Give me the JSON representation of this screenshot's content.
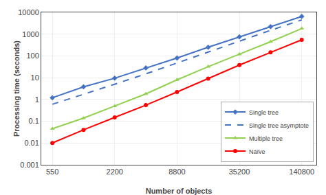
{
  "chart_data": {
    "type": "line",
    "xlabel": "Number of objects",
    "ylabel": "Processing time (seconds)",
    "x": [
      550,
      1100,
      2200,
      4400,
      8800,
      17600,
      35200,
      70400,
      140800
    ],
    "series": [
      {
        "name": "Single tree",
        "color": "#4472C4",
        "marker": "diamond",
        "line_style": "solid",
        "values": [
          1.2,
          3.8,
          9.5,
          28.0,
          80.0,
          250.0,
          750.0,
          2200.0,
          6500.0
        ]
      },
      {
        "name": "Single tree asymptote",
        "color": "#4472C4",
        "line_style": "dashed",
        "values": [
          0.6,
          1.7,
          5.0,
          15.0,
          48.0,
          150.0,
          480.0,
          1500.0,
          4500.0
        ]
      },
      {
        "name": "Multiple tree",
        "color": "#92D050",
        "marker": "triangle-up",
        "line_style": "solid",
        "values": [
          0.045,
          0.14,
          0.5,
          1.8,
          8.0,
          32.0,
          120.0,
          450.0,
          1800.0
        ]
      },
      {
        "name": "Naïve",
        "color": "#FF0000",
        "marker": "circle",
        "line_style": "solid",
        "values": [
          0.01,
          0.04,
          0.15,
          0.55,
          2.2,
          9.0,
          38.0,
          145.0,
          550.0
        ]
      }
    ],
    "xlim": [
      430,
      195000
    ],
    "xticks": [
      550,
      2200,
      8800,
      35200,
      140800
    ],
    "ylim": [
      0.001,
      10000
    ],
    "yticks": [
      0.001,
      0.01,
      0.1,
      1,
      10,
      100,
      1000,
      10000
    ],
    "log": true,
    "grid": true,
    "legend": "lower right"
  }
}
